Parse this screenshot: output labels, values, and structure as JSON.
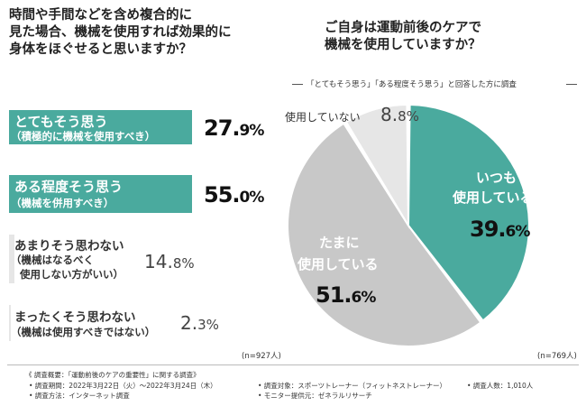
{
  "left": {
    "title_lines": [
      "時間や手間などを含め複合的に",
      "見た場合、機械を使用すれば効果的に",
      "身体をほぐせると思いますか？"
    ],
    "n_label": "(n=927人)"
  },
  "right": {
    "title_lines": [
      "ご自身は運動前後のケアで",
      "機械を使用していますか？"
    ],
    "subtitle": "「とてもそう思う」「ある程度そう思う」と回答した方に調査",
    "n_label": "(n=769人)"
  },
  "footer": {
    "line1": "《 調査概要：「運動前後のケアの重要性」に関する調査》",
    "period": "• 調査期間：2022年3月22日（火）～2022年3月24日（木）",
    "method": "• 調査方法：インターネット調査",
    "target": "• 調査対象：スポーツトレーナー（フィットネストレーナー）",
    "provider": "• モニター提供元：ゼネラルリサーチ",
    "count": "• 調査人数：1,010人"
  },
  "colors": {
    "teal": "#4aaa9e",
    "grey": "#c8c8c8",
    "light_grey": "#e6e6e6"
  },
  "chart_data": [
    {
      "type": "bar",
      "orientation": "horizontal",
      "categories": [
        {
          "label": "とてもそう思う",
          "sub": "（積極的に機械を使用すべき）"
        },
        {
          "label": "ある程度そう思う",
          "sub": "（機械を併用すべき）"
        },
        {
          "label": "あまりそう思わない",
          "sub": "（機械はなるべく",
          "sub2": "使用しない方がいい）"
        },
        {
          "label": "まったくそう思わない",
          "sub": "（機械は使用すべきではない）"
        }
      ],
      "values": [
        27.9,
        55.0,
        14.8,
        2.3
      ],
      "value_labels": [
        {
          "num": "27.",
          "dec": "9",
          "unit": "%"
        },
        {
          "num": "55.",
          "dec": "0",
          "unit": "%"
        },
        {
          "num": "14.",
          "dec": "8",
          "unit": "%"
        },
        {
          "num": "2.",
          "dec": "3",
          "unit": "%"
        }
      ]
    },
    {
      "type": "pie",
      "slices": [
        {
          "label_lines": [
            "いつも",
            "使用している"
          ],
          "value": 39.6,
          "value_text": "39.",
          "dec": "6",
          "unit": "%",
          "color": "#4aaa9e"
        },
        {
          "label_lines": [
            "たまに",
            "使用している"
          ],
          "value": 51.6,
          "value_text": "51.",
          "dec": "6",
          "unit": "%",
          "color": "#c8c8c8"
        },
        {
          "label_lines": [
            "使用していない"
          ],
          "value": 8.8,
          "value_text": "8.",
          "dec": "8",
          "unit": "%",
          "color": "#e6e6e6"
        }
      ]
    }
  ]
}
